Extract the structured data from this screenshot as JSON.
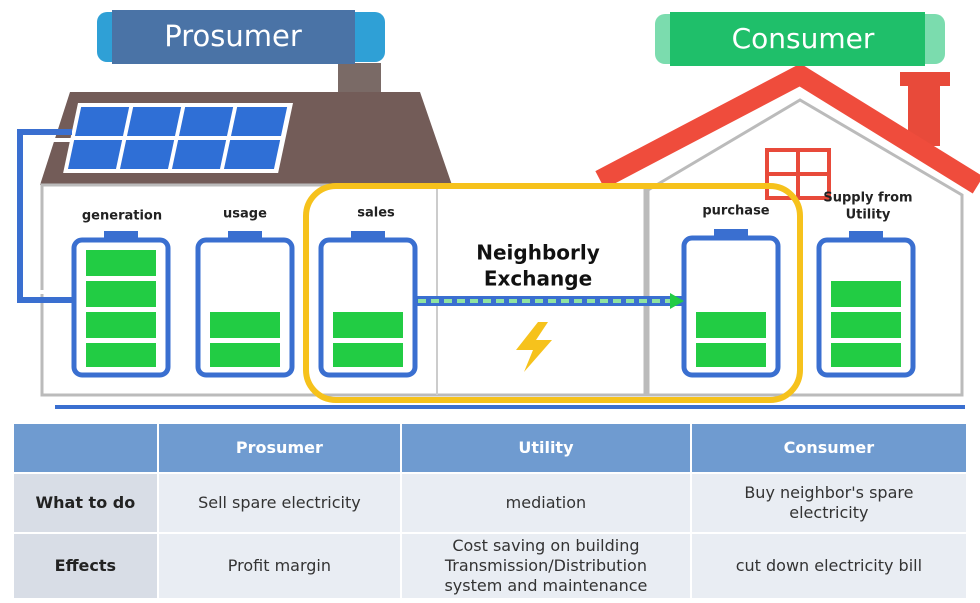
{
  "prosumer_title": "Prosumer",
  "consumer_title": "Consumer",
  "batteries": {
    "generation": "generation",
    "usage": "usage",
    "sales": "sales",
    "purchase": "purchase",
    "supply": [
      "Supply from",
      "Utility"
    ]
  },
  "exchange_label": [
    "Neighborly",
    "Exchange"
  ],
  "table": {
    "header": [
      "Prosumer",
      "Utility",
      "Consumer"
    ],
    "rows": [
      {
        "label": "What to do",
        "cells": [
          "Sell spare electricity",
          "mediation",
          "Buy neighbor's spare electricity"
        ]
      },
      {
        "label": "Effects",
        "cells": [
          "Profit margin",
          "Cost saving on building Transmission/Distribution system and maintenance",
          "cut down electricity bill"
        ]
      }
    ]
  }
}
